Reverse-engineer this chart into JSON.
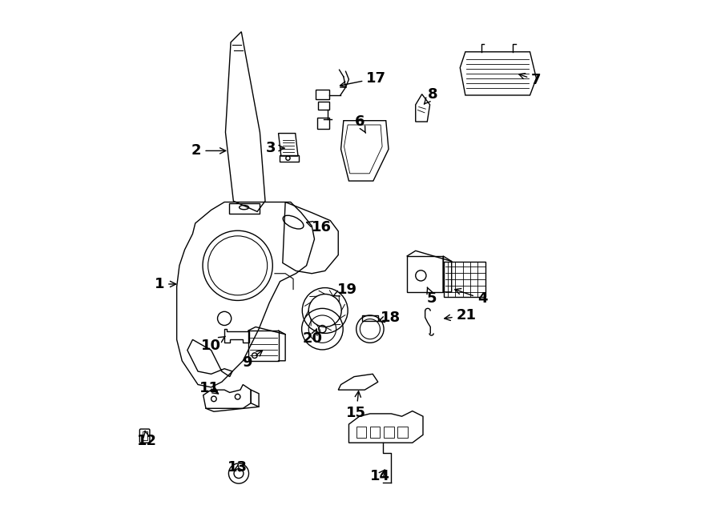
{
  "bg_color": "#ffffff",
  "line_color": "#000000",
  "label_fontsize": 13,
  "label_data": [
    [
      1,
      0.12,
      0.463,
      0.158,
      0.463
    ],
    [
      2,
      0.19,
      0.715,
      0.252,
      0.715
    ],
    [
      3,
      0.33,
      0.72,
      0.363,
      0.72
    ],
    [
      4,
      0.73,
      0.435,
      0.672,
      0.455
    ],
    [
      5,
      0.635,
      0.435,
      0.624,
      0.462
    ],
    [
      6,
      0.498,
      0.77,
      0.51,
      0.748
    ],
    [
      7,
      0.832,
      0.848,
      0.793,
      0.862
    ],
    [
      8,
      0.637,
      0.822,
      0.619,
      0.802
    ],
    [
      9,
      0.286,
      0.315,
      0.32,
      0.342
    ],
    [
      10,
      0.218,
      0.347,
      0.249,
      0.367
    ],
    [
      11,
      0.215,
      0.267,
      0.237,
      0.252
    ],
    [
      12,
      0.097,
      0.167,
      0.093,
      0.187
    ],
    [
      13,
      0.268,
      0.117,
      0.27,
      0.127
    ],
    [
      14,
      0.537,
      0.1,
      0.55,
      0.117
    ],
    [
      15,
      0.492,
      0.22,
      0.497,
      0.267
    ],
    [
      16,
      0.427,
      0.57,
      0.392,
      0.582
    ],
    [
      17,
      0.53,
      0.852,
      0.455,
      0.837
    ],
    [
      18,
      0.557,
      0.4,
      0.532,
      0.392
    ],
    [
      19,
      0.475,
      0.452,
      0.447,
      0.44
    ],
    [
      20,
      0.41,
      0.36,
      0.418,
      0.38
    ],
    [
      21,
      0.7,
      0.404,
      0.652,
      0.397
    ]
  ]
}
